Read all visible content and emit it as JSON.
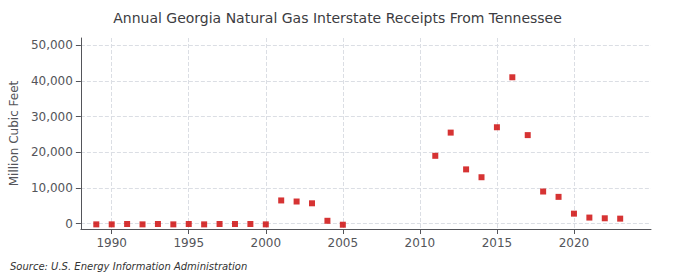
{
  "chart_data": {
    "type": "scatter",
    "title": "Annual Georgia Natural Gas Interstate Receipts From Tennessee",
    "ylabel": "Million Cubic Feet",
    "annotations": [
      "Source: U.S. Energy Information Administration"
    ],
    "x": [
      1989,
      1990,
      1991,
      1992,
      1993,
      1994,
      1995,
      1996,
      1997,
      1998,
      1999,
      2000,
      2001,
      2002,
      2003,
      2004,
      2005,
      2011,
      2012,
      2013,
      2014,
      2015,
      2016,
      2017,
      2018,
      2019,
      2020,
      2021,
      2022,
      2023
    ],
    "values": [
      -200,
      -200,
      -100,
      -200,
      -100,
      -200,
      -100,
      -200,
      -100,
      -100,
      -100,
      -200,
      6500,
      6200,
      5700,
      800,
      -300,
      19000,
      25500,
      15200,
      13000,
      27000,
      41000,
      24800,
      9000,
      7500,
      2800,
      1700,
      1500,
      1400
    ],
    "color": "#cc0000",
    "marker": "square",
    "xlim": [
      1988.0,
      2025.0
    ],
    "xticks": [
      1990,
      1995,
      2000,
      2005,
      2010,
      2015,
      2020
    ],
    "ylim": [
      -1500,
      52000
    ],
    "yticks": [
      0,
      {
        "value": 10000,
        "label": "10,000"
      },
      {
        "value": 20000,
        "label": "20,000"
      },
      {
        "value": 30000,
        "label": "30,000"
      },
      {
        "value": 40000,
        "label": "40,000"
      },
      {
        "value": 50000,
        "label": "50,000"
      }
    ],
    "grid": true
  }
}
